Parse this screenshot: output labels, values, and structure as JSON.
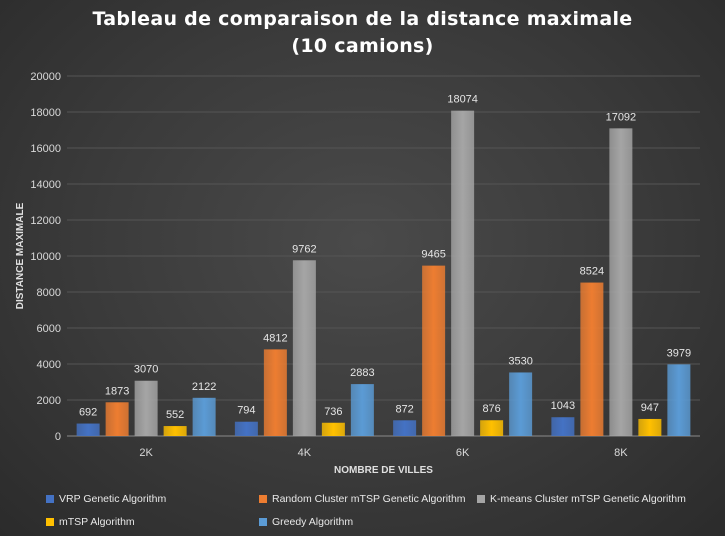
{
  "chart_data": {
    "type": "bar",
    "title_lines": [
      "Tableau de comparaison de la distance maximale",
      "(10 camions)"
    ],
    "xlabel": "NOMBRE DE VILLES",
    "ylabel": "DISTANCE MAXIMALE",
    "ylim": [
      0,
      20000
    ],
    "yticks": [
      0,
      2000,
      4000,
      6000,
      8000,
      10000,
      12000,
      14000,
      16000,
      18000,
      20000
    ],
    "grid": true,
    "legend_position": "bottom",
    "categories": [
      "2K",
      "4K",
      "6K",
      "8K"
    ],
    "series": [
      {
        "name": "VRP Genetic Algorithm",
        "color": "#4472c4",
        "values": [
          692,
          794,
          872,
          1043
        ]
      },
      {
        "name": "Random Cluster mTSP Genetic Algorithm",
        "color": "#ed7d31",
        "values": [
          1873,
          4812,
          9465,
          8524
        ]
      },
      {
        "name": "K-means Cluster mTSP Genetic Algorithm",
        "color": "#a5a5a5",
        "values": [
          3070,
          9762,
          18074,
          17092
        ]
      },
      {
        "name": "mTSP Algorithm",
        "color": "#ffc000",
        "values": [
          552,
          736,
          876,
          947
        ]
      },
      {
        "name": "Greedy Algorithm",
        "color": "#5b9bd5",
        "values": [
          2122,
          2883,
          3530,
          3979
        ]
      }
    ]
  }
}
